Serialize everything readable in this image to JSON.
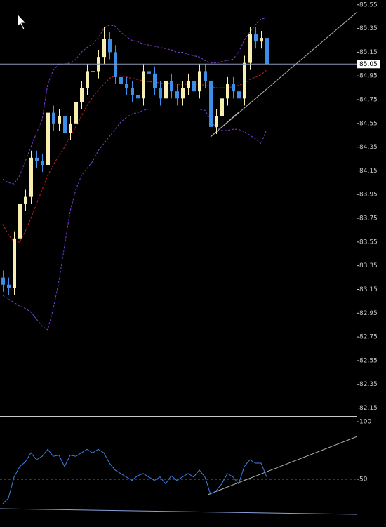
{
  "chart_data": [
    {
      "type": "candlestick",
      "bull_color": "#f7eeb0",
      "bear_color": "#3d8ee8",
      "open": [
        83.25,
        83.19,
        83.16,
        83.58,
        83.87,
        83.93,
        84.26,
        84.23,
        84.2,
        84.64,
        84.55,
        84.61,
        84.47,
        84.55,
        84.73,
        84.85,
        84.99,
        84.99,
        85.11,
        85.26,
        85.15,
        84.94,
        84.88,
        84.85,
        84.79,
        84.76,
        84.99,
        84.97,
        84.85,
        84.76,
        84.91,
        84.82,
        84.76,
        84.85,
        84.91,
        84.82,
        84.99,
        84.91,
        84.52,
        84.61,
        84.76,
        84.88,
        84.82,
        84.76,
        85.06,
        85.3,
        85.24,
        85.27
      ],
      "high": [
        83.31,
        83.25,
        83.64,
        83.93,
        83.99,
        84.32,
        84.32,
        84.29,
        84.7,
        84.7,
        84.67,
        84.67,
        84.61,
        84.79,
        84.91,
        85.05,
        85.05,
        85.17,
        85.36,
        85.32,
        85.21,
        85.0,
        84.94,
        84.91,
        84.85,
        85.05,
        85.05,
        85.03,
        84.91,
        84.97,
        84.97,
        84.88,
        84.91,
        84.97,
        84.97,
        85.05,
        85.05,
        84.97,
        84.67,
        84.82,
        84.94,
        84.94,
        84.88,
        85.12,
        85.36,
        85.36,
        85.33,
        85.33
      ],
      "low": [
        83.13,
        83.1,
        83.1,
        83.52,
        83.81,
        83.87,
        84.17,
        84.14,
        84.14,
        84.49,
        84.49,
        84.41,
        84.41,
        84.49,
        84.67,
        84.79,
        84.93,
        84.93,
        85.05,
        85.09,
        84.88,
        84.82,
        84.79,
        84.73,
        84.66,
        84.7,
        84.91,
        84.79,
        84.7,
        84.7,
        84.76,
        84.7,
        84.7,
        84.79,
        84.76,
        84.76,
        84.85,
        84.45,
        84.46,
        84.55,
        84.7,
        84.76,
        84.7,
        84.7,
        85.0,
        85.18,
        85.18,
        84.99
      ],
      "close": [
        83.19,
        83.16,
        83.58,
        83.87,
        83.93,
        84.26,
        84.23,
        84.2,
        84.64,
        84.55,
        84.61,
        84.47,
        84.55,
        84.73,
        84.85,
        84.99,
        84.99,
        85.11,
        85.26,
        85.15,
        84.94,
        84.88,
        84.85,
        84.79,
        84.76,
        84.99,
        84.97,
        84.85,
        84.76,
        84.91,
        84.82,
        84.76,
        84.85,
        84.91,
        84.82,
        84.99,
        84.91,
        84.52,
        84.61,
        84.76,
        84.88,
        84.82,
        84.76,
        85.06,
        85.3,
        85.24,
        85.27,
        85.05
      ],
      "series": [
        {
          "color": "#7a3fd8",
          "values": [
            84.08,
            84.05,
            84.04,
            84.11,
            84.23,
            84.35,
            84.47,
            84.58,
            84.88,
            85.0,
            85.05,
            85.05,
            85.06,
            85.09,
            85.15,
            85.19,
            85.22,
            85.27,
            85.35,
            85.38,
            85.37,
            85.32,
            85.28,
            85.25,
            85.24,
            85.22,
            85.21,
            85.2,
            85.19,
            85.18,
            85.17,
            85.15,
            85.15,
            85.13,
            85.12,
            85.11,
            85.08,
            85.06,
            85.06,
            85.07,
            85.08,
            85.09,
            85.15,
            85.25,
            85.32,
            85.38,
            85.43,
            85.44
          ]
        },
        {
          "color": "#d02020",
          "values": [
            83.7,
            83.61,
            83.55,
            83.55,
            83.64,
            83.75,
            83.87,
            83.99,
            84.11,
            84.2,
            84.28,
            84.35,
            84.44,
            84.52,
            84.61,
            84.7,
            84.77,
            84.83,
            84.88,
            84.93,
            84.95,
            84.95,
            84.94,
            84.93,
            84.92,
            84.91,
            84.9,
            84.9,
            84.89,
            84.89,
            84.89,
            84.88,
            84.88,
            84.88,
            84.88,
            84.88,
            84.87,
            84.86,
            84.85,
            84.85,
            84.85,
            84.86,
            84.87,
            84.89,
            84.92,
            84.94,
            84.96,
            85.0
          ]
        },
        {
          "color": "#7a3fd8",
          "values": [
            83.1,
            83.07,
            83.04,
            83.01,
            82.99,
            82.96,
            82.9,
            82.84,
            82.81,
            82.99,
            83.22,
            83.52,
            83.81,
            83.99,
            84.11,
            84.17,
            84.23,
            84.32,
            84.38,
            84.44,
            84.5,
            84.56,
            84.6,
            84.63,
            84.64,
            84.66,
            84.67,
            84.67,
            84.67,
            84.67,
            84.67,
            84.67,
            84.67,
            84.67,
            84.67,
            84.67,
            84.66,
            84.58,
            84.51,
            84.49,
            84.49,
            84.5,
            84.5,
            84.48,
            84.45,
            84.42,
            84.38,
            84.5
          ]
        }
      ],
      "current_price": 85.05,
      "ylim": [
        82.1,
        85.59
      ],
      "yticks": [
        85.55,
        85.35,
        85.15,
        84.95,
        84.75,
        84.55,
        84.35,
        84.15,
        83.95,
        83.75,
        83.55,
        83.35,
        83.15,
        82.95,
        82.75,
        82.55,
        82.35,
        82.15
      ]
    },
    {
      "type": "line",
      "series": [
        {
          "color": "#3f7fe8",
          "values": [
            28.7,
            33.5,
            51.8,
            61,
            65,
            73,
            67,
            70,
            76,
            70,
            71,
            61,
            71,
            70,
            73,
            76,
            73,
            76,
            73,
            64,
            58,
            55,
            52,
            49,
            53,
            55,
            52,
            49,
            52,
            46,
            53,
            49,
            52,
            55,
            52,
            58,
            52,
            37,
            40,
            46,
            55,
            52,
            46,
            61,
            67,
            64,
            64,
            52
          ]
        }
      ],
      "levels": [
        50
      ],
      "ylim": [
        8.5,
        104.3
      ],
      "yticks": [
        100,
        50
      ]
    }
  ]
}
